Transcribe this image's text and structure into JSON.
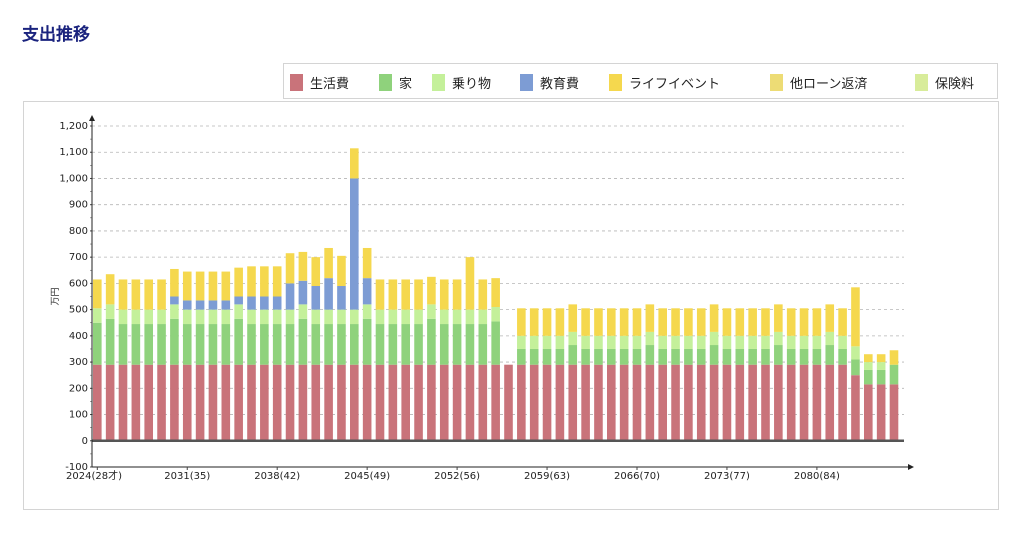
{
  "page": {
    "title": "支出推移"
  },
  "legend": [
    {
      "label": "生活費",
      "color": "#c9737a"
    },
    {
      "label": "家",
      "color": "#8fd27c"
    },
    {
      "label": "乗り物",
      "color": "#c4f09a"
    },
    {
      "label": "教育費",
      "color": "#7d9cd4"
    },
    {
      "label": "ライフイベント",
      "color": "#f5d84e"
    },
    {
      "label": "他ローン返済",
      "color": "#eddc75"
    },
    {
      "label": "保険料",
      "color": "#d8ec9a"
    }
  ],
  "chart_data": {
    "type": "bar",
    "stacked": true,
    "ylabel": "万円",
    "ylim": [
      -100,
      1200
    ],
    "yticks": [
      "-100",
      "0",
      "100",
      "200",
      "300",
      "400",
      "500",
      "600",
      "700",
      "800",
      "900",
      "1,000",
      "1,100",
      "1,200"
    ],
    "x_tick_labels": [
      {
        "label": "2024(28才)",
        "index": 0
      },
      {
        "label": "2031(35)",
        "index": 7
      },
      {
        "label": "2038(42)",
        "index": 14
      },
      {
        "label": "2045(49)",
        "index": 21
      },
      {
        "label": "2052(56)",
        "index": 28
      },
      {
        "label": "2059(63)",
        "index": 35
      },
      {
        "label": "2066(70)",
        "index": 42
      },
      {
        "label": "2073(77)",
        "index": 49
      },
      {
        "label": "2080(84)",
        "index": 56
      }
    ],
    "grid": true,
    "series": [
      {
        "name": "生活費",
        "color": "#c9737a",
        "values": [
          290,
          290,
          290,
          290,
          290,
          290,
          290,
          290,
          290,
          290,
          290,
          290,
          290,
          290,
          290,
          290,
          290,
          290,
          290,
          290,
          290,
          290,
          290,
          290,
          290,
          290,
          290,
          290,
          290,
          290,
          290,
          290,
          290,
          290,
          290,
          290,
          290,
          290,
          290,
          290,
          290,
          290,
          290,
          290,
          290,
          290,
          290,
          290,
          290,
          290,
          290,
          290,
          290,
          290,
          290,
          290,
          290,
          290,
          290,
          250,
          215,
          215,
          215
        ]
      },
      {
        "name": "家",
        "color": "#8fd27c",
        "values": [
          160,
          175,
          155,
          155,
          155,
          155,
          175,
          155,
          155,
          155,
          155,
          175,
          155,
          155,
          155,
          155,
          175,
          155,
          155,
          155,
          155,
          175,
          155,
          155,
          155,
          155,
          175,
          155,
          155,
          155,
          155,
          165,
          0,
          60,
          60,
          60,
          60,
          75,
          60,
          60,
          60,
          60,
          60,
          75,
          60,
          60,
          60,
          60,
          75,
          60,
          60,
          60,
          60,
          75,
          60,
          60,
          60,
          75,
          60,
          60,
          55,
          55,
          75
        ]
      },
      {
        "name": "乗り物",
        "color": "#c4f09a",
        "values": [
          55,
          55,
          55,
          55,
          55,
          55,
          55,
          55,
          55,
          55,
          55,
          55,
          55,
          55,
          55,
          55,
          55,
          55,
          55,
          55,
          55,
          55,
          55,
          55,
          55,
          55,
          55,
          55,
          55,
          55,
          55,
          55,
          0,
          50,
          50,
          50,
          50,
          50,
          50,
          50,
          50,
          50,
          50,
          50,
          50,
          50,
          50,
          50,
          50,
          50,
          50,
          50,
          50,
          50,
          50,
          50,
          50,
          50,
          50,
          50,
          30,
          30,
          0
        ]
      },
      {
        "name": "教育費",
        "color": "#7d9cd4",
        "values": [
          0,
          0,
          0,
          0,
          0,
          0,
          30,
          35,
          35,
          35,
          35,
          30,
          50,
          50,
          50,
          100,
          90,
          90,
          120,
          90,
          500,
          100,
          0,
          0,
          0,
          0,
          0,
          0,
          0,
          0,
          0,
          0,
          0,
          0,
          0,
          0,
          0,
          0,
          0,
          0,
          0,
          0,
          0,
          0,
          0,
          0,
          0,
          0,
          0,
          0,
          0,
          0,
          0,
          0,
          0,
          0,
          0,
          0,
          0,
          0,
          0,
          0,
          0
        ]
      },
      {
        "name": "ライフイベント",
        "color": "#f5d84e",
        "values": [
          110,
          115,
          115,
          115,
          115,
          115,
          105,
          110,
          110,
          110,
          110,
          110,
          115,
          115,
          115,
          115,
          110,
          110,
          115,
          115,
          115,
          115,
          115,
          115,
          115,
          115,
          105,
          115,
          115,
          200,
          115,
          110,
          0,
          105,
          105,
          105,
          105,
          105,
          105,
          105,
          105,
          105,
          105,
          105,
          105,
          105,
          105,
          105,
          105,
          105,
          105,
          105,
          105,
          105,
          105,
          105,
          105,
          105,
          105,
          225,
          30,
          30,
          55
        ]
      },
      {
        "name": "他ローン返済",
        "color": "#eddc75",
        "values": [
          0,
          0,
          0,
          0,
          0,
          0,
          0,
          0,
          0,
          0,
          0,
          0,
          0,
          0,
          0,
          0,
          0,
          0,
          0,
          0,
          0,
          0,
          0,
          0,
          0,
          0,
          0,
          0,
          0,
          0,
          0,
          0,
          0,
          0,
          0,
          0,
          0,
          0,
          0,
          0,
          0,
          0,
          0,
          0,
          0,
          0,
          0,
          0,
          0,
          0,
          0,
          0,
          0,
          0,
          0,
          0,
          0,
          0,
          0,
          0,
          0,
          0,
          0
        ]
      },
      {
        "name": "保険料",
        "color": "#d8ec9a",
        "values": [
          0,
          0,
          0,
          0,
          0,
          0,
          0,
          0,
          0,
          0,
          0,
          0,
          0,
          0,
          0,
          0,
          0,
          0,
          0,
          0,
          0,
          0,
          0,
          0,
          0,
          0,
          0,
          0,
          0,
          0,
          0,
          0,
          0,
          0,
          0,
          0,
          0,
          0,
          0,
          0,
          0,
          0,
          0,
          0,
          0,
          0,
          0,
          0,
          0,
          0,
          0,
          0,
          0,
          0,
          0,
          0,
          0,
          0,
          0,
          0,
          0,
          0,
          0
        ]
      }
    ]
  }
}
